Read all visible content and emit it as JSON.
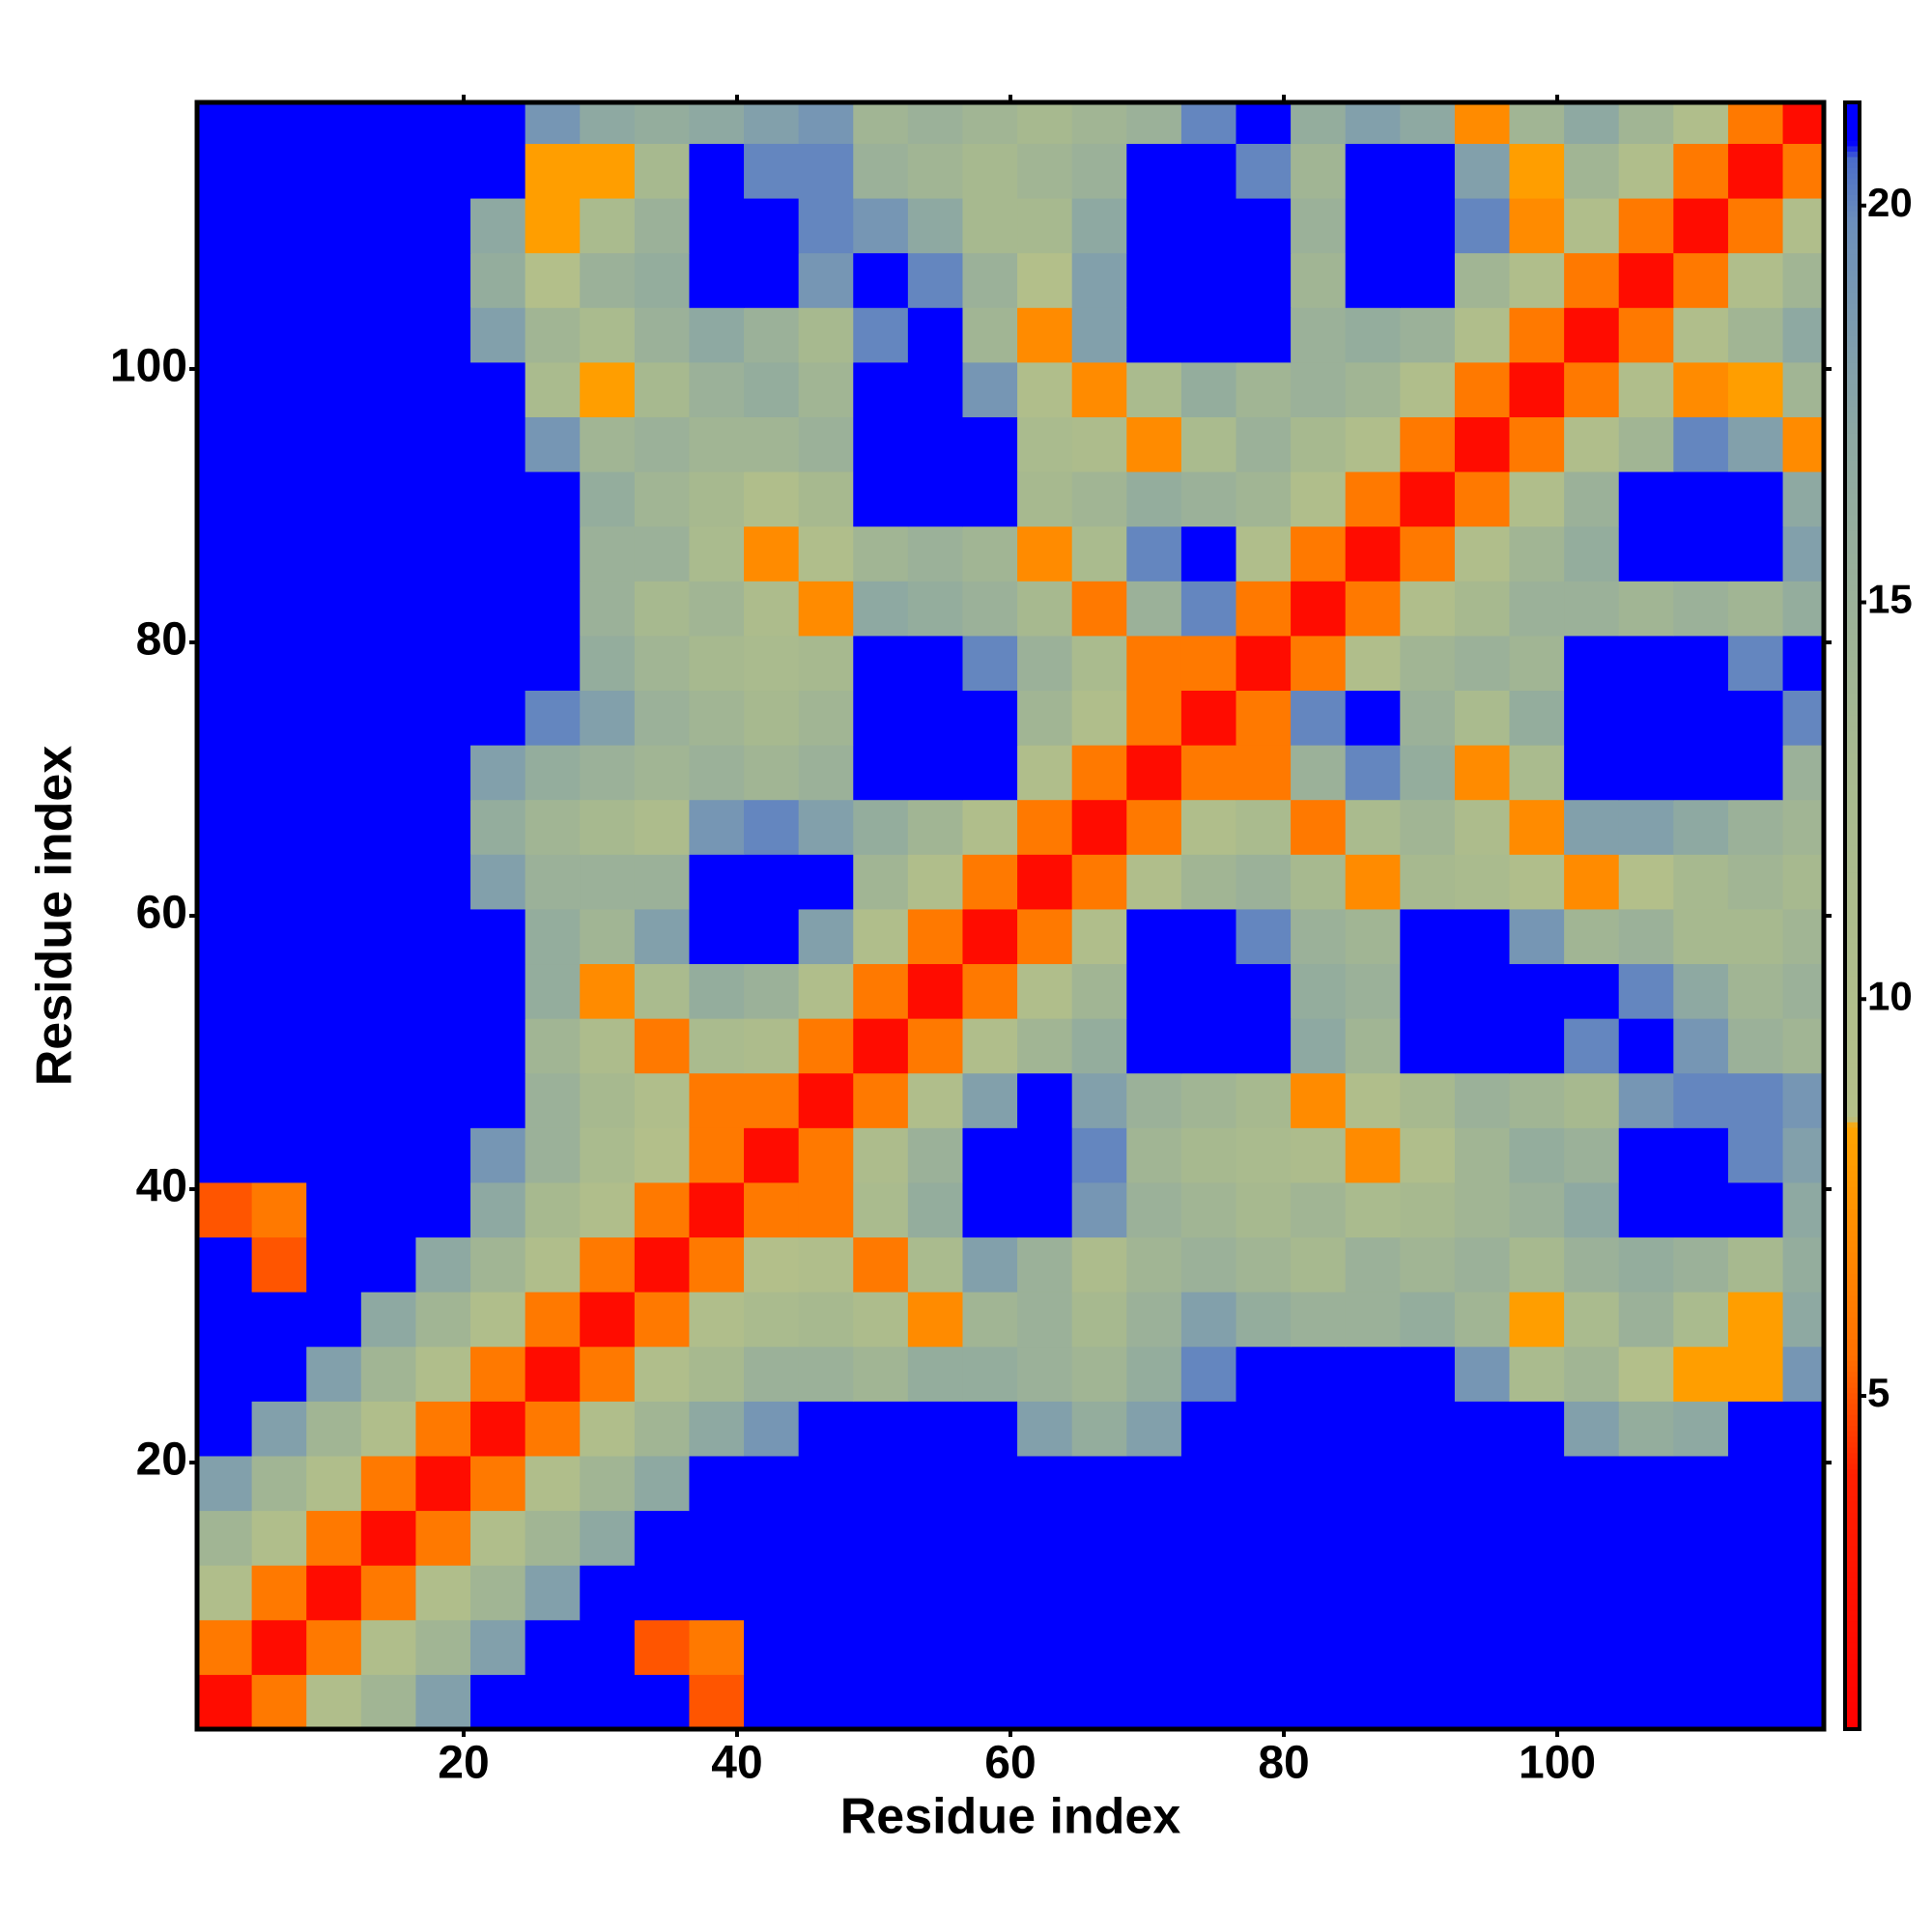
{
  "chart_data": {
    "type": "heatmap",
    "x_label": "Residue index",
    "y_label": "Residue index",
    "xbins": [
      0.5,
      4.5,
      8.5,
      12.5,
      16.5,
      20.5,
      24.5,
      28.5,
      32.5,
      36.5,
      40.5,
      44.5,
      48.5,
      52.5,
      56.5,
      60.5,
      64.5,
      68.5,
      72.5,
      76.5,
      80.5,
      84.5,
      88.5,
      92.5,
      96.5,
      100.5,
      104.5,
      108.5,
      112.5,
      116.5,
      119.5
    ],
    "ybins": [
      0.5,
      4.5,
      8.5,
      12.5,
      16.5,
      20.5,
      24.5,
      28.5,
      32.5,
      36.5,
      40.5,
      44.5,
      48.5,
      52.5,
      56.5,
      60.5,
      64.5,
      68.5,
      72.5,
      76.5,
      80.5,
      84.5,
      88.5,
      92.5,
      96.5,
      100.5,
      104.5,
      108.5,
      112.5,
      116.5,
      119.5
    ],
    "xlim": [
      0.5,
      119.5
    ],
    "ylim": [
      0.5,
      119.5
    ],
    "xticks": [
      20,
      40,
      60,
      80,
      100
    ],
    "yticks": [
      20,
      40,
      60,
      80,
      100
    ],
    "colorbar_lim": [
      0.8,
      21.3
    ],
    "colorbar_ticks": [
      5,
      10,
      15,
      20
    ],
    "colorscale": [
      {
        "value": 0.8,
        "color": "#ff0000"
      },
      {
        "value": 4,
        "color": "#ff2000"
      },
      {
        "value": 5.5,
        "color": "#ff7000"
      },
      {
        "value": 8.4,
        "color": "#ffa500"
      },
      {
        "value": 8.5,
        "color": "#b5c089"
      },
      {
        "value": 13,
        "color": "#a7b98f"
      },
      {
        "value": 17,
        "color": "#8ea9a2"
      },
      {
        "value": 19.8,
        "color": "#6c8fbb"
      },
      {
        "value": 20.6,
        "color": "#4a6ccb"
      },
      {
        "value": 20.8,
        "color": "#0000ff"
      },
      {
        "value": 21.3,
        "color": "#0000ff"
      }
    ],
    "values": [
      [
        2,
        6,
        10,
        14,
        18,
        21,
        21,
        21,
        21,
        5,
        21,
        21,
        21,
        21,
        21,
        21,
        21,
        21,
        21,
        21,
        21,
        21,
        21,
        21,
        21,
        21,
        21,
        21,
        21,
        21
      ],
      [
        6,
        2,
        6,
        10,
        14,
        18,
        21,
        21,
        5,
        6,
        21,
        21,
        21,
        21,
        21,
        21,
        21,
        21,
        21,
        21,
        21,
        21,
        21,
        21,
        21,
        21,
        21,
        21,
        21,
        21
      ],
      [
        10,
        6,
        2,
        6,
        10,
        14,
        18,
        21,
        21,
        21,
        21,
        21,
        21,
        21,
        21,
        21,
        21,
        21,
        21,
        21,
        21,
        21,
        21,
        21,
        21,
        21,
        21,
        21,
        21,
        21
      ],
      [
        14,
        10,
        6,
        2,
        6,
        10,
        14,
        17,
        21,
        21,
        21,
        21,
        21,
        21,
        21,
        21,
        21,
        21,
        21,
        21,
        21,
        21,
        21,
        21,
        21,
        21,
        21,
        21,
        21,
        21
      ],
      [
        18,
        14,
        10,
        6,
        2,
        6,
        10,
        14,
        17,
        21,
        21,
        21,
        21,
        21,
        21,
        21,
        21,
        21,
        21,
        21,
        21,
        21,
        21,
        21,
        21,
        21,
        21,
        21,
        21,
        21
      ],
      [
        21,
        18,
        14,
        10,
        6,
        2,
        6,
        10,
        14,
        17,
        19,
        21,
        21,
        21,
        21,
        18,
        16,
        18,
        21,
        21,
        21,
        21,
        21,
        21,
        21,
        18,
        16,
        17,
        21,
        21
      ],
      [
        21,
        21,
        18,
        14,
        10,
        6,
        2,
        6,
        10,
        13,
        15,
        15,
        14,
        16,
        16,
        15,
        14,
        16,
        20,
        21,
        21,
        21,
        21,
        19,
        12,
        14,
        9,
        8,
        8,
        19
      ],
      [
        21,
        21,
        21,
        17,
        14,
        10,
        6,
        2,
        6,
        10,
        12,
        13,
        11,
        7,
        14,
        15,
        13,
        15,
        18,
        16,
        15,
        15,
        16,
        14,
        8,
        12,
        15,
        12,
        8,
        17
      ],
      [
        21,
        5,
        21,
        21,
        17,
        14,
        10,
        6,
        2,
        6,
        9,
        10,
        6,
        12,
        18,
        15,
        11,
        14,
        15,
        14,
        13,
        15,
        14,
        15,
        13,
        15,
        16,
        15,
        13,
        16
      ],
      [
        5,
        6,
        21,
        21,
        21,
        17,
        13,
        10,
        6,
        2,
        6,
        6,
        12,
        16,
        21,
        21,
        19,
        15,
        14,
        13,
        14,
        12,
        13,
        14,
        15,
        17,
        21,
        21,
        21,
        17
      ],
      [
        21,
        21,
        21,
        21,
        21,
        19,
        15,
        12,
        9,
        6,
        2,
        6,
        11,
        15,
        21,
        21,
        20,
        14,
        13,
        12,
        11,
        7,
        10,
        14,
        16,
        15,
        21,
        21,
        20,
        18
      ],
      [
        21,
        21,
        21,
        21,
        21,
        21,
        15,
        13,
        10,
        6,
        6,
        2,
        6,
        10,
        18,
        21,
        18,
        15,
        14,
        13,
        7,
        10,
        13,
        15,
        14,
        13,
        19,
        20,
        20,
        19
      ],
      [
        21,
        21,
        21,
        21,
        21,
        21,
        14,
        11,
        6,
        12,
        11,
        6,
        2,
        6,
        10,
        14,
        16,
        21,
        21,
        21,
        17,
        14,
        21,
        21,
        21,
        20,
        21,
        19,
        15,
        14
      ],
      [
        21,
        21,
        21,
        21,
        21,
        21,
        16,
        7,
        12,
        16,
        15,
        10,
        6,
        2,
        6,
        10,
        14,
        21,
        21,
        21,
        16,
        15,
        21,
        21,
        21,
        21,
        20,
        17,
        14,
        15
      ],
      [
        21,
        21,
        21,
        21,
        21,
        21,
        16,
        14,
        18,
        21,
        21,
        18,
        10,
        6,
        2,
        6,
        10,
        21,
        21,
        20,
        15,
        14,
        21,
        21,
        19,
        14,
        15,
        13,
        13,
        14
      ],
      [
        21,
        21,
        21,
        21,
        21,
        18,
        15,
        15,
        15,
        21,
        21,
        21,
        14,
        10,
        6,
        2,
        6,
        10,
        14,
        15,
        13,
        7,
        13,
        12,
        10,
        7,
        9,
        13,
        14,
        13
      ],
      [
        21,
        21,
        21,
        21,
        21,
        16,
        14,
        13,
        11,
        19,
        20,
        18,
        16,
        14,
        10,
        6,
        2,
        6,
        10,
        12,
        6,
        12,
        14,
        11,
        7,
        18,
        18,
        17,
        15,
        14
      ],
      [
        21,
        21,
        21,
        21,
        21,
        18,
        16,
        15,
        14,
        15,
        14,
        15,
        21,
        21,
        21,
        10,
        6,
        2,
        6,
        6,
        15,
        20,
        16,
        7,
        12,
        21,
        21,
        21,
        21,
        15
      ],
      [
        21,
        21,
        21,
        21,
        21,
        21,
        20,
        18,
        15,
        14,
        13,
        14,
        21,
        21,
        21,
        14,
        10,
        6,
        2,
        6,
        20,
        21,
        15,
        12,
        16,
        21,
        21,
        21,
        21,
        20
      ],
      [
        21,
        21,
        21,
        21,
        21,
        21,
        21,
        16,
        14,
        13,
        12,
        13,
        21,
        21,
        20,
        15,
        12,
        6,
        6,
        2,
        6,
        10,
        14,
        15,
        14,
        21,
        21,
        21,
        20,
        21
      ],
      [
        21,
        21,
        21,
        21,
        21,
        21,
        21,
        15,
        13,
        14,
        11,
        7,
        17,
        16,
        15,
        13,
        6,
        15,
        20,
        6,
        2,
        6,
        10,
        13,
        15,
        15,
        14,
        15,
        14,
        16
      ],
      [
        21,
        21,
        21,
        21,
        21,
        21,
        21,
        15,
        15,
        12,
        7,
        10,
        14,
        15,
        14,
        7,
        12,
        20,
        21,
        10,
        6,
        2,
        6,
        10,
        14,
        16,
        21,
        21,
        21,
        18
      ],
      [
        21,
        21,
        21,
        21,
        21,
        21,
        21,
        16,
        14,
        13,
        10,
        13,
        21,
        21,
        21,
        13,
        14,
        16,
        15,
        14,
        10,
        6,
        2,
        6,
        10,
        15,
        21,
        21,
        21,
        17
      ],
      [
        21,
        21,
        21,
        21,
        21,
        21,
        19,
        14,
        15,
        14,
        14,
        15,
        21,
        21,
        21,
        12,
        11,
        7,
        12,
        15,
        13,
        10,
        6,
        2,
        6,
        10,
        14,
        20,
        18,
        7
      ],
      [
        21,
        21,
        21,
        21,
        21,
        21,
        12,
        8,
        13,
        15,
        16,
        14,
        21,
        21,
        19,
        10,
        7,
        12,
        16,
        14,
        15,
        14,
        10,
        6,
        2,
        6,
        10,
        7,
        8,
        14
      ],
      [
        21,
        21,
        21,
        21,
        21,
        18,
        14,
        12,
        15,
        17,
        15,
        13,
        20,
        21,
        14,
        7,
        18,
        21,
        21,
        21,
        15,
        16,
        15,
        10,
        6,
        2,
        6,
        10,
        14,
        17
      ],
      [
        21,
        21,
        21,
        21,
        21,
        16,
        9,
        15,
        16,
        21,
        21,
        19,
        21,
        20,
        15,
        9,
        18,
        21,
        21,
        21,
        14,
        21,
        21,
        14,
        10,
        6,
        2,
        6,
        10,
        14
      ],
      [
        21,
        21,
        21,
        21,
        21,
        17,
        8,
        12,
        15,
        21,
        21,
        20,
        19,
        17,
        13,
        13,
        17,
        21,
        21,
        21,
        15,
        21,
        21,
        20,
        7,
        10,
        6,
        2,
        6,
        10
      ],
      [
        21,
        21,
        21,
        21,
        21,
        21,
        8,
        8,
        13,
        21,
        20,
        20,
        15,
        14,
        13,
        14,
        15,
        21,
        21,
        20,
        14,
        21,
        21,
        18,
        8,
        14,
        10,
        6,
        2,
        6
      ],
      [
        21,
        21,
        21,
        21,
        21,
        21,
        19,
        17,
        16,
        17,
        18,
        19,
        14,
        15,
        14,
        13,
        14,
        15,
        20,
        21,
        16,
        18,
        17,
        7,
        14,
        17,
        14,
        10,
        6,
        2
      ]
    ]
  }
}
